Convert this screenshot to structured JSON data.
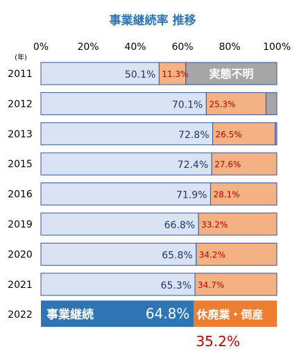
{
  "chart_data": {
    "type": "bar",
    "stacked": true,
    "orientation": "horizontal",
    "title": "事業継続率 推移",
    "y_unit_label": "(年)",
    "xlim": [
      0,
      100
    ],
    "x_ticks": [
      "0%",
      "20%",
      "40%",
      "60%",
      "80%",
      "100%"
    ],
    "categories": [
      "2011",
      "2012",
      "2013",
      "2015",
      "2016",
      "2019",
      "2020",
      "2021",
      "2022"
    ],
    "series": [
      {
        "name": "事業継続",
        "values": [
          50.1,
          70.1,
          72.8,
          72.4,
          71.9,
          66.8,
          65.8,
          65.3,
          64.8
        ],
        "labels": [
          "50.1%",
          "70.1%",
          "72.8%",
          "72.4%",
          "71.9%",
          "66.8%",
          "65.8%",
          "65.3%",
          "64.8%"
        ]
      },
      {
        "name": "休廃業・倒産",
        "values": [
          11.3,
          25.3,
          26.5,
          27.6,
          28.1,
          33.2,
          34.2,
          34.7,
          35.2
        ],
        "labels": [
          "11.3%",
          "25.3%",
          "26.5%",
          "27.6%",
          "28.1%",
          "33.2%",
          "34.2%",
          "34.7%",
          "35.2%"
        ]
      },
      {
        "name": "実態不明",
        "values": [
          38.6,
          4.6,
          0.7,
          0,
          0,
          0,
          0,
          0,
          0
        ]
      }
    ],
    "grid": false,
    "legend": "none"
  },
  "colors": {
    "title": "#2e75b6",
    "continue_fill": "#dae3f3",
    "continue_fill_highlight": "#2e75b6",
    "closed_fill": "#f4b183",
    "closed_fill_highlight": "#ed7d31",
    "unknown_fill": "#a6a6a6",
    "bar_border": "#2f5597",
    "continue_label": "#1f3864",
    "closed_label": "#c00000",
    "axis_text": "#000000"
  }
}
